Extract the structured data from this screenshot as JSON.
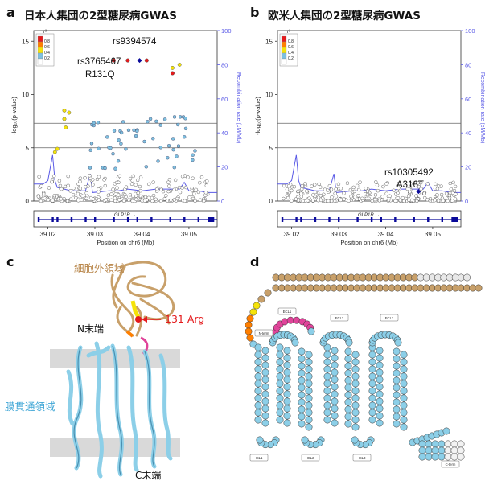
{
  "panel_a": {
    "label": "a",
    "title": "日本人集団の2型糖尿病GWAS",
    "annotations": [
      {
        "text": "rs9394574"
      },
      {
        "text": "rs3765467"
      },
      {
        "text": "R131Q"
      }
    ],
    "gene": "GLP1R →"
  },
  "panel_b": {
    "label": "b",
    "title": "欧米人集団の2型糖尿病GWAS",
    "annotations": [
      {
        "text": "rs10305492"
      },
      {
        "text": "A316T"
      }
    ],
    "gene": "GLP1R →"
  },
  "panel_c": {
    "label": "c",
    "extracellular": "細胞外領域",
    "n_term": "N末端",
    "arg": "131 Arg",
    "transmembrane": "膜貫通領域",
    "c_term": "C末端"
  },
  "panel_d": {
    "label": "d",
    "loops": [
      "N-term",
      "ECL1",
      "ECL2",
      "ECL3",
      "ICL1",
      "ICL2",
      "ICL3",
      "C-term"
    ]
  },
  "axes": {
    "ylabel_left": "-log₁₀(p-value)",
    "ylabel_right": "Recombination rate (cM/Mb)",
    "xlabel": "Position on chr6 (Mb)",
    "yticks_left": [
      "0",
      "5",
      "10",
      "15"
    ],
    "yticks_right": [
      "0",
      "20",
      "40",
      "60",
      "80",
      "100"
    ],
    "xticks": [
      "39.02",
      "39.03",
      "39.04",
      "39.05"
    ],
    "legend_title": "r²",
    "legend_labels": [
      "0.8",
      "0.6",
      "0.4",
      "0.2"
    ]
  },
  "colors": {
    "red": "#e41a1c",
    "orange": "#ff7f00",
    "yellow": "#f5e30a",
    "lightblue": "#7ec0e0",
    "navy": "#0a0a9a",
    "tan": "#c8a06a",
    "magenta": "#e0449a",
    "recomb": "#5a5ae6"
  }
}
